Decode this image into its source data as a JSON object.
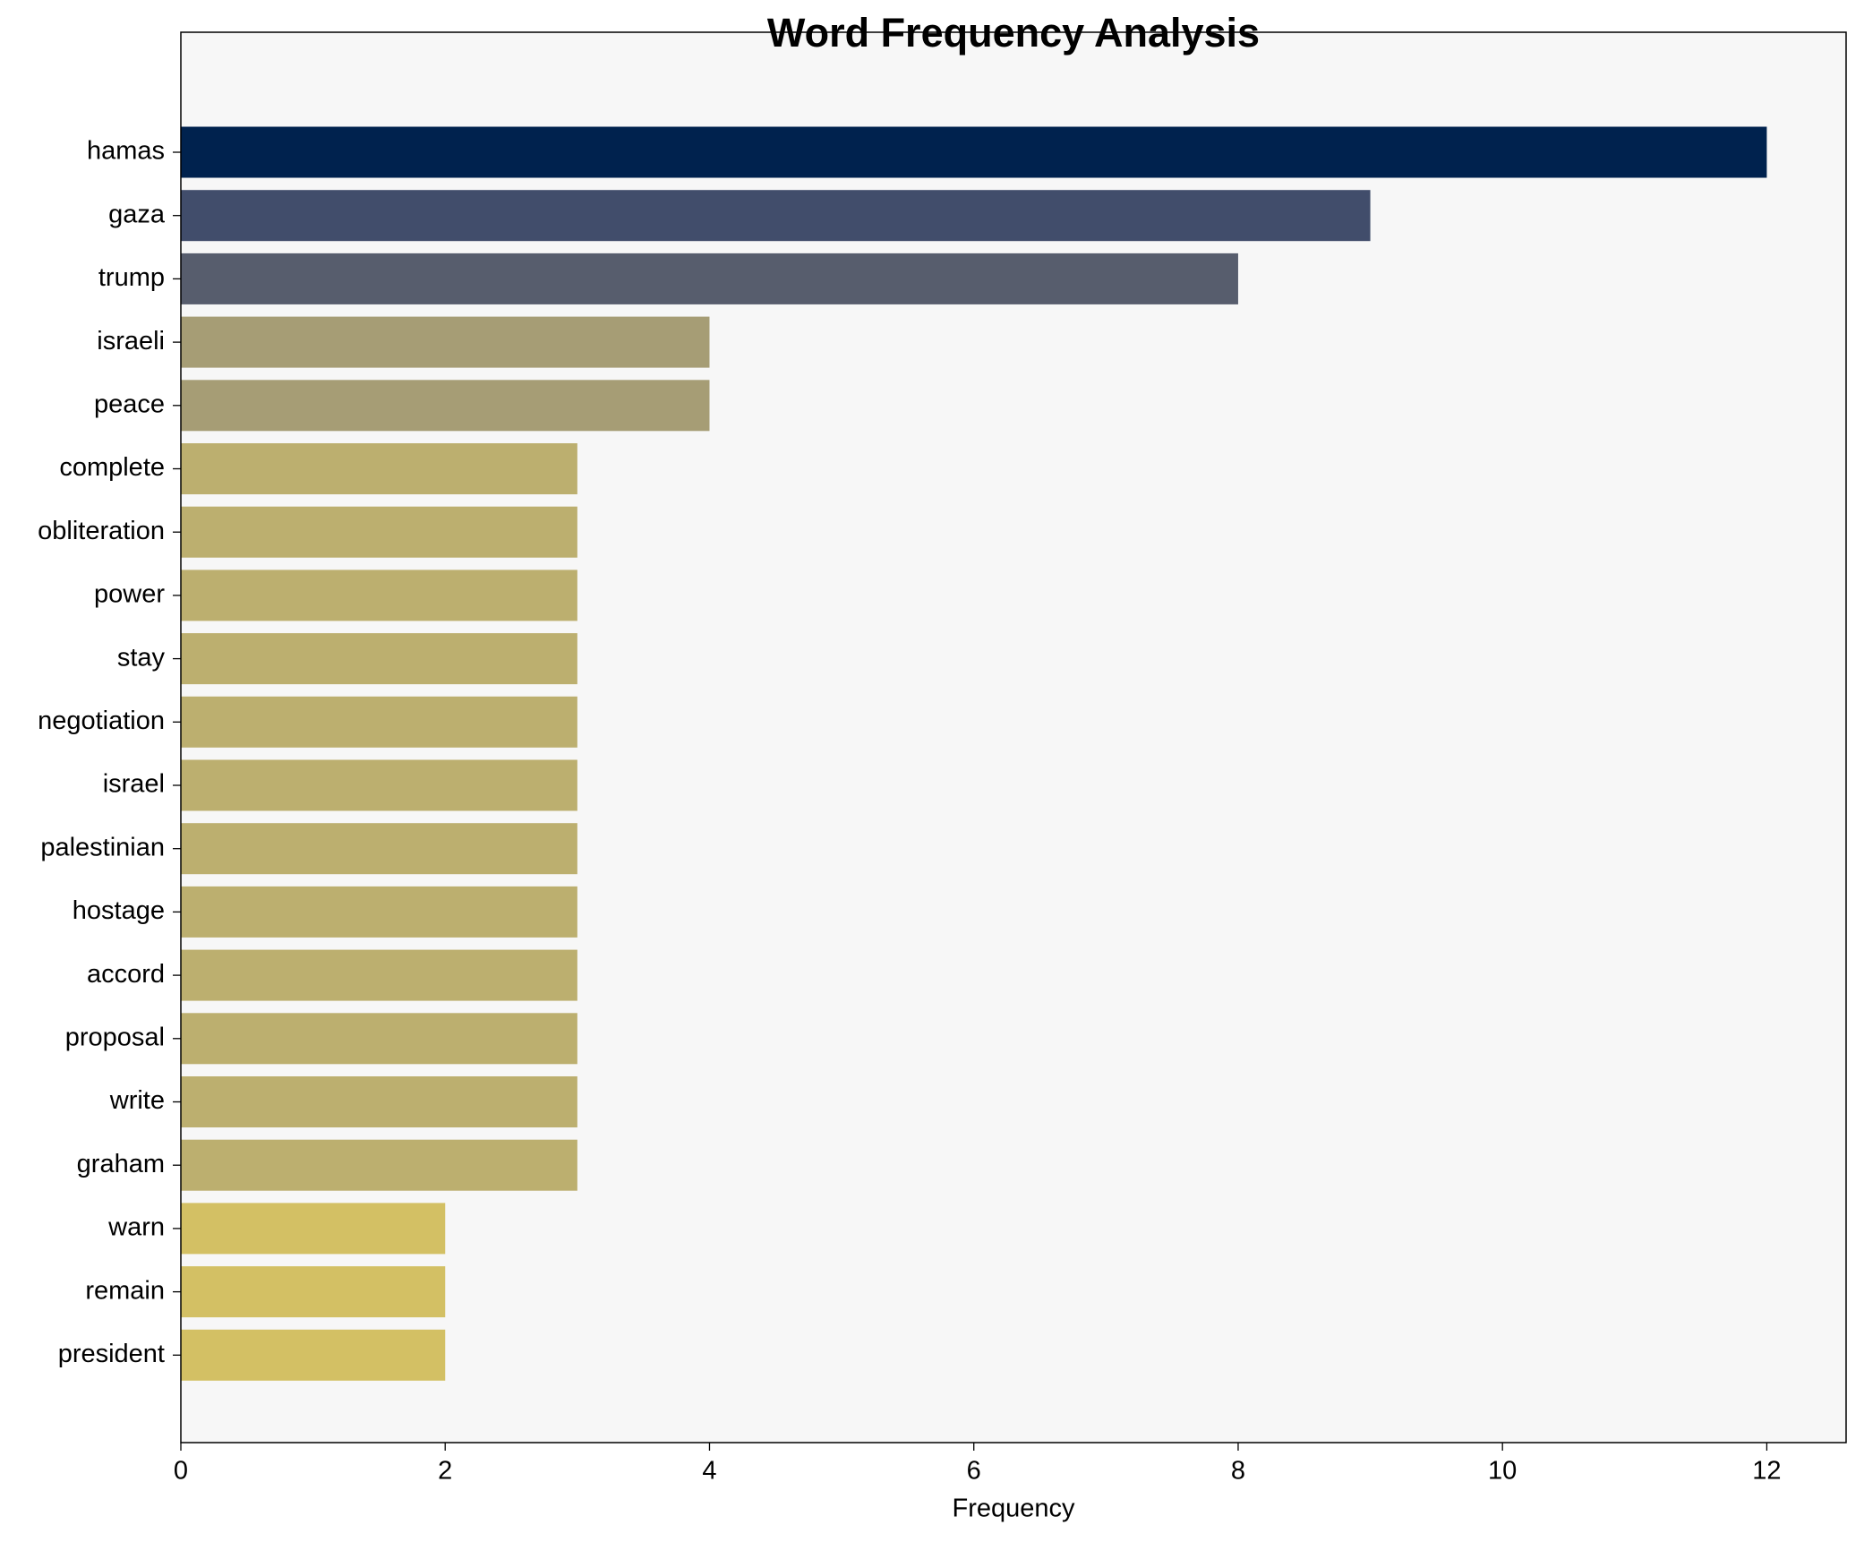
{
  "chart_data": {
    "type": "barh",
    "title": "Word Frequency Analysis",
    "xlabel": "Frequency",
    "categories": [
      "hamas",
      "gaza",
      "trump",
      "israeli",
      "peace",
      "complete",
      "obliteration",
      "power",
      "stay",
      "negotiation",
      "israel",
      "palestinian",
      "hostage",
      "accord",
      "proposal",
      "write",
      "graham",
      "warn",
      "remain",
      "president"
    ],
    "values": [
      12,
      9,
      8,
      4,
      4,
      3,
      3,
      3,
      3,
      3,
      3,
      3,
      3,
      3,
      3,
      3,
      3,
      2,
      2,
      2
    ],
    "colors": [
      "#00224e",
      "#414d6b",
      "#575d6d",
      "#a69d75",
      "#a69d75",
      "#bcaf6f",
      "#bcaf6f",
      "#bcaf6f",
      "#bcaf6f",
      "#bcaf6f",
      "#bcaf6f",
      "#bcaf6f",
      "#bcaf6f",
      "#bcaf6f",
      "#bcaf6f",
      "#bcaf6f",
      "#bcaf6f",
      "#d3c064",
      "#d3c064",
      "#d3c064"
    ],
    "xlim": [
      0,
      12.6
    ],
    "xticks": [
      0,
      2,
      4,
      6,
      8,
      10,
      12
    ]
  }
}
